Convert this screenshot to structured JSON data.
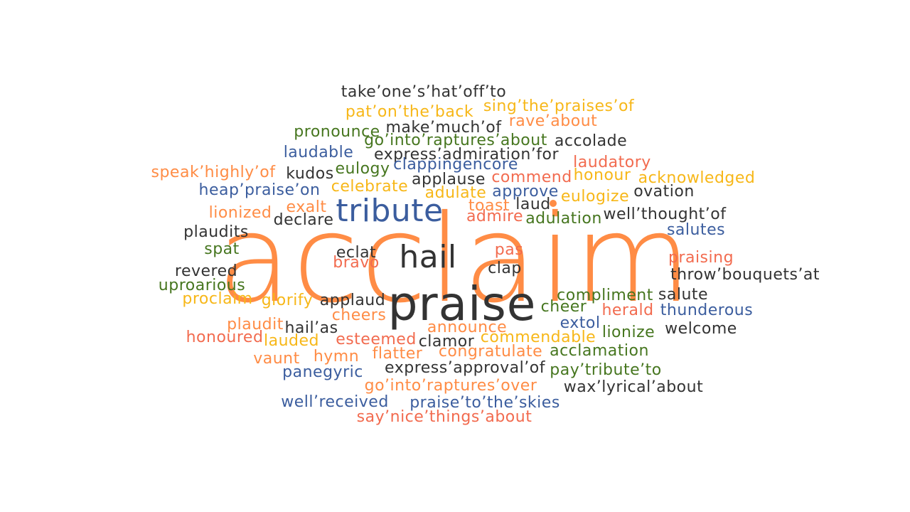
{
  "palette": {
    "orange": "#FF8C45",
    "red": "#F26B4F",
    "yellow": "#F7B718",
    "green": "#46761F",
    "blue": "#3B5D9E",
    "dark": "#333333"
  },
  "dot_color": "#FF8C45",
  "words": [
    {
      "text": "acclaim",
      "color": "orange"
    },
    {
      "text": "praise",
      "color": "dark"
    },
    {
      "text": "tribute",
      "color": "blue"
    },
    {
      "text": "hail",
      "color": "dark"
    },
    {
      "text": "take’one’s’hat’off’to",
      "color": "dark"
    },
    {
      "text": "pat’on’the’back",
      "color": "yellow"
    },
    {
      "text": "sing’the’praises’of",
      "color": "yellow"
    },
    {
      "text": "make’much’of",
      "color": "dark"
    },
    {
      "text": "rave’about",
      "color": "orange"
    },
    {
      "text": "pronounce",
      "color": "green"
    },
    {
      "text": "go’into’raptures’about",
      "color": "green"
    },
    {
      "text": "accolade",
      "color": "dark"
    },
    {
      "text": "laudable",
      "color": "blue"
    },
    {
      "text": "express’admiration’for",
      "color": "dark"
    },
    {
      "text": "laudatory",
      "color": "red"
    },
    {
      "text": "speak’highly’of",
      "color": "orange"
    },
    {
      "text": "kudos",
      "color": "dark"
    },
    {
      "text": "eulogy",
      "color": "green"
    },
    {
      "text": "clappingencore",
      "color": "blue"
    },
    {
      "text": "applause",
      "color": "dark"
    },
    {
      "text": "commend",
      "color": "red"
    },
    {
      "text": "honour",
      "color": "yellow"
    },
    {
      "text": "acknowledged",
      "color": "yellow"
    },
    {
      "text": "heap’praise’on",
      "color": "blue"
    },
    {
      "text": "celebrate",
      "color": "yellow"
    },
    {
      "text": "adulate",
      "color": "yellow"
    },
    {
      "text": "approve",
      "color": "blue"
    },
    {
      "text": "eulogize",
      "color": "yellow"
    },
    {
      "text": "ovation",
      "color": "dark"
    },
    {
      "text": "lionized",
      "color": "orange"
    },
    {
      "text": "exalt",
      "color": "orange"
    },
    {
      "text": "declare",
      "color": "dark"
    },
    {
      "text": "toast",
      "color": "orange"
    },
    {
      "text": "laud",
      "color": "dark"
    },
    {
      "text": "admire",
      "color": "red"
    },
    {
      "text": "adulation",
      "color": "green"
    },
    {
      "text": "well’thought’of",
      "color": "dark"
    },
    {
      "text": "plaudits",
      "color": "dark"
    },
    {
      "text": "salutes",
      "color": "blue"
    },
    {
      "text": "spat",
      "color": "green"
    },
    {
      "text": "eclat",
      "color": "dark"
    },
    {
      "text": "pas",
      "color": "red"
    },
    {
      "text": "bravo",
      "color": "red"
    },
    {
      "text": "clap",
      "color": "dark"
    },
    {
      "text": "praising",
      "color": "red"
    },
    {
      "text": "revered",
      "color": "dark"
    },
    {
      "text": "throw’bouquets’at",
      "color": "dark"
    },
    {
      "text": "uproarious",
      "color": "green"
    },
    {
      "text": "proclaim",
      "color": "yellow"
    },
    {
      "text": "glorify",
      "color": "yellow"
    },
    {
      "text": "applaud",
      "color": "dark"
    },
    {
      "text": "compliment",
      "color": "green"
    },
    {
      "text": "salute",
      "color": "dark"
    },
    {
      "text": "cheers",
      "color": "orange"
    },
    {
      "text": "cheer",
      "color": "green"
    },
    {
      "text": "herald",
      "color": "red"
    },
    {
      "text": "thunderous",
      "color": "blue"
    },
    {
      "text": "plaudit",
      "color": "orange"
    },
    {
      "text": "hail’as",
      "color": "dark"
    },
    {
      "text": "announce",
      "color": "orange"
    },
    {
      "text": "extol",
      "color": "blue"
    },
    {
      "text": "lionize",
      "color": "green"
    },
    {
      "text": "welcome",
      "color": "dark"
    },
    {
      "text": "honoured",
      "color": "red"
    },
    {
      "text": "lauded",
      "color": "yellow"
    },
    {
      "text": "esteemed",
      "color": "red"
    },
    {
      "text": "clamor",
      "color": "dark"
    },
    {
      "text": "commendable",
      "color": "yellow"
    },
    {
      "text": "vaunt",
      "color": "orange"
    },
    {
      "text": "hymn",
      "color": "orange"
    },
    {
      "text": "flatter",
      "color": "orange"
    },
    {
      "text": "congratulate",
      "color": "orange"
    },
    {
      "text": "acclamation",
      "color": "green"
    },
    {
      "text": "panegyric",
      "color": "blue"
    },
    {
      "text": "express’approval’of",
      "color": "dark"
    },
    {
      "text": "pay’tribute’to",
      "color": "green"
    },
    {
      "text": "go’into’raptures’over",
      "color": "orange"
    },
    {
      "text": "wax’lyrical’about",
      "color": "dark"
    },
    {
      "text": "well’received",
      "color": "blue"
    },
    {
      "text": "praise’to’the’skies",
      "color": "blue"
    },
    {
      "text": "say’nice’things’about",
      "color": "red"
    }
  ]
}
